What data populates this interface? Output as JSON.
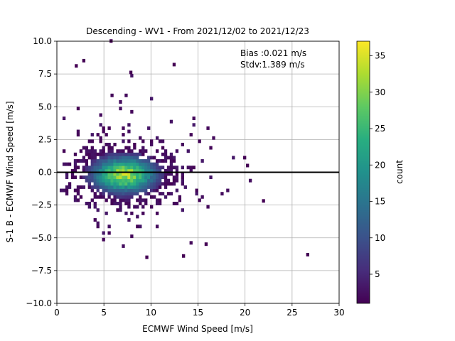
{
  "chart_data": {
    "type": "heatmap",
    "title": "Descending - WV1 - From 2021/12/02 to 2021/12/23",
    "xlabel": "ECMWF Wind Speed [m/s]",
    "ylabel": "S-1 B - ECMWF Wind Speed [m/s]",
    "xlim": [
      0,
      30
    ],
    "ylim": [
      -10,
      10
    ],
    "xticks": [
      "0",
      "5",
      "10",
      "15",
      "20",
      "25",
      "30"
    ],
    "yticks": [
      "−10.0",
      "−7.5",
      "−5.0",
      "−2.5",
      "0.0",
      "2.5",
      "5.0",
      "7.5",
      "10.0"
    ],
    "grid": true,
    "reference_line_y": 0,
    "annotation": {
      "bias": "Bias :0.021 m/s",
      "stdv": "Stdv:1.389 m/s"
    },
    "colorbar": {
      "label": "count",
      "colormap": "viridis",
      "min": 1,
      "max": 37,
      "ticks": [
        "5",
        "10",
        "15",
        "20",
        "25",
        "30",
        "35"
      ]
    },
    "bin_size": {
      "x": 0.3,
      "y": 0.25
    },
    "density": {
      "peak": {
        "x": 7.0,
        "y": -0.3,
        "count": 37
      },
      "spread_x": 3.0,
      "spread_y": 1.2
    },
    "outliers": [
      {
        "x": 26.5,
        "y": -6.4
      },
      {
        "x": 21.8,
        "y": -2.3
      },
      {
        "x": 20.1,
        "y": 0.4
      },
      {
        "x": 5.6,
        "y": 9.9
      },
      {
        "x": 2.7,
        "y": 8.4
      },
      {
        "x": 9.4,
        "y": -6.6
      },
      {
        "x": 12.3,
        "y": 8.1
      },
      {
        "x": 13.3,
        "y": -6.5
      },
      {
        "x": 7.7,
        "y": 7.5
      },
      {
        "x": 1.9,
        "y": 8.0
      },
      {
        "x": 15.7,
        "y": -5.6
      }
    ]
  }
}
